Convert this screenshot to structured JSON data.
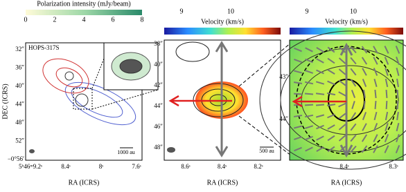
{
  "panels": [
    {
      "colorbar": {
        "label": "Polarization intensity (mJy/beam)",
        "ticks": [
          "0",
          "2",
          "4",
          "6",
          "8"
        ]
      },
      "source": "HOPS-317S",
      "yaxis": {
        "label": "DEC (ICRS)",
        "ticks": [
          "32″",
          "36″",
          "40″",
          "44″",
          "48″",
          "52″",
          "−0°56′"
        ]
      },
      "xaxis": {
        "label": "RA (ICRS)",
        "ticks": [
          "5ʰ46ᵐ9.2ˢ",
          "8.4ˢ",
          "8ˢ",
          "7.6ˢ"
        ]
      },
      "scalebar": "1000 au"
    },
    {
      "colorbar": {
        "label": "Velocity (km/s)",
        "ticks": [
          "9",
          "10"
        ]
      },
      "yaxis": {
        "ticks": [
          "38″",
          "40″",
          "42″",
          "44″",
          "46″",
          "48″"
        ]
      },
      "xaxis": {
        "label": "RA (ICRS)",
        "ticks": [
          "8.6ˢ",
          "8.4ˢ",
          "8.2ˢ"
        ]
      },
      "scalebar": "500 au"
    },
    {
      "colorbar": {
        "label": "Velocity (km/s)",
        "ticks": [
          "9",
          "10"
        ]
      },
      "yaxis": {
        "ticks": [
          "43″",
          "44″"
        ]
      },
      "xaxis": {
        "label": "RA (ICRS)",
        "ticks": [
          "8.4ˢ",
          "8.3ˢ"
        ]
      }
    }
  ]
}
